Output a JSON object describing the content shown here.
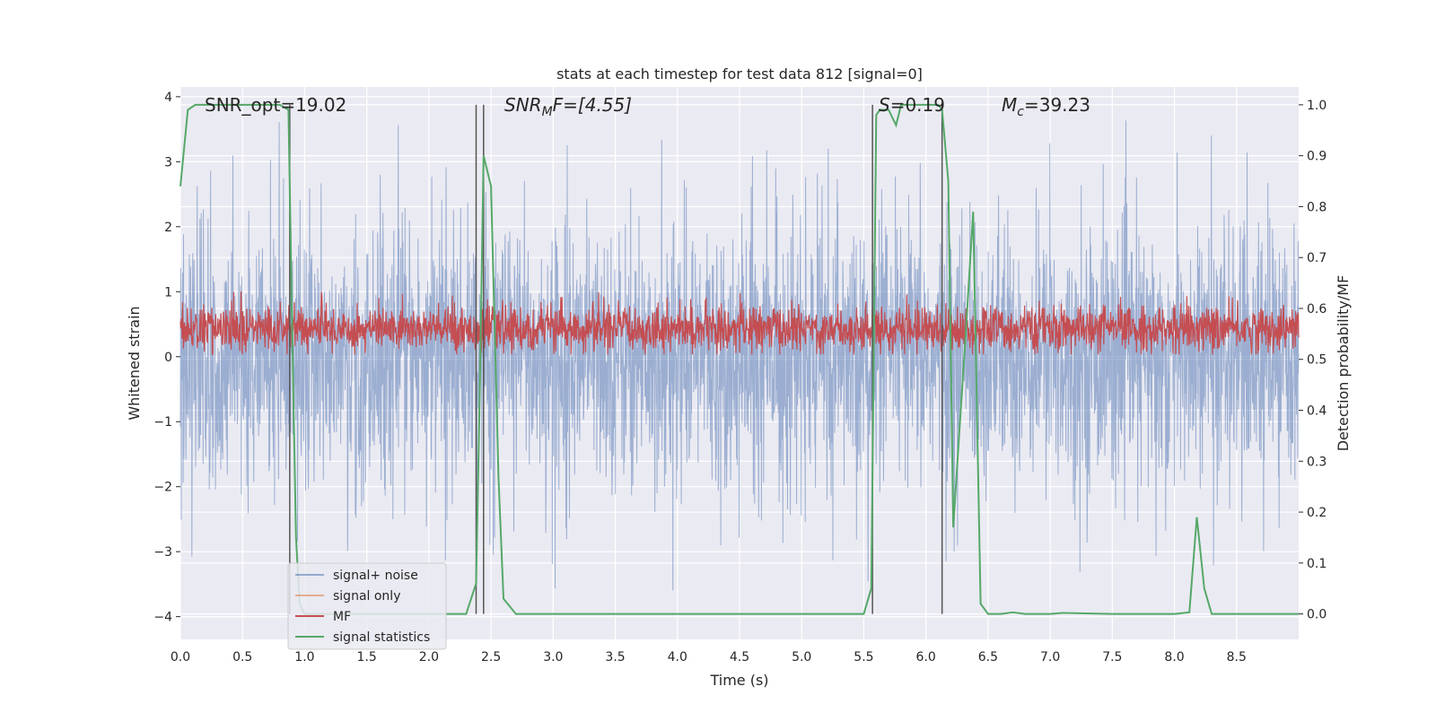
{
  "chart_data": {
    "type": "line",
    "title": "stats at each timestep for test data 812 [signal=0]",
    "xlabel": "Time (s)",
    "ylabel_left": "Whitened strain",
    "ylabel_right": "Detection probability/MF",
    "xlim": [
      0.0,
      9.0
    ],
    "ylim_left": [
      -4.35,
      4.15
    ],
    "ylim_right": [
      -0.05,
      1.035
    ],
    "x_ticks": [
      0.0,
      0.5,
      1.0,
      1.5,
      2.0,
      2.5,
      3.0,
      3.5,
      4.0,
      4.5,
      5.0,
      5.5,
      6.0,
      6.5,
      7.0,
      7.5,
      8.0,
      8.5
    ],
    "x_tick_labels": [
      "0.0",
      "0.5",
      "1.0",
      "1.5",
      "2.0",
      "2.5",
      "3.0",
      "3.5",
      "4.0",
      "4.5",
      "5.0",
      "5.5",
      "6.0",
      "6.5",
      "7.0",
      "7.5",
      "8.0",
      "8.5"
    ],
    "y_ticks_left": [
      -4,
      -3,
      -2,
      -1,
      0,
      1,
      2,
      3,
      4
    ],
    "y_tick_labels_left": [
      "−4",
      "−3",
      "−2",
      "−1",
      "0",
      "1",
      "2",
      "3",
      "4"
    ],
    "y_ticks_right": [
      0.0,
      0.1,
      0.2,
      0.3,
      0.4,
      0.5,
      0.6,
      0.7,
      0.8,
      0.9,
      1.0
    ],
    "y_tick_labels_right": [
      "0.0",
      "0.1",
      "0.2",
      "0.3",
      "0.4",
      "0.5",
      "0.6",
      "0.7",
      "0.8",
      "0.9",
      "1.0"
    ],
    "grid": true,
    "legend_position": "lower-left",
    "annotations": {
      "snr_opt": "SNR_opt=19.02",
      "snr_mf_symbol": "SNR",
      "snr_mf_subscript": "M",
      "snr_mf_rest": "F=[4.55]",
      "s_symbol": "S",
      "s_rest": "=0.19",
      "mc_symbol": "M",
      "mc_subscript": "c",
      "mc_rest": "=39.23"
    },
    "vertical_lines": [
      0.88,
      2.38,
      2.44,
      5.57,
      6.13
    ],
    "series": [
      {
        "name": "signal+ noise",
        "color": "#4c72b0",
        "axis": "left",
        "description_style": "dense noise",
        "noise_std": 0.95,
        "spike_max": 3.8
      },
      {
        "name": "signal only",
        "color": "#dd8452",
        "axis": "left",
        "values": []
      },
      {
        "name": "MF",
        "color": "#c44e52",
        "axis": "right",
        "band": [
          0.52,
          0.6
        ],
        "spike_max": 0.64
      },
      {
        "name": "signal statistics",
        "color": "#55a868",
        "axis": "right",
        "x": [
          0.0,
          0.06,
          0.12,
          0.2,
          0.3,
          0.4,
          0.5,
          0.6,
          0.7,
          0.8,
          0.87,
          0.9,
          0.93,
          0.96,
          1.0,
          1.1,
          1.5,
          2.0,
          2.3,
          2.38,
          2.41,
          2.44,
          2.5,
          2.56,
          2.6,
          2.7,
          3.0,
          4.0,
          5.0,
          5.5,
          5.56,
          5.6,
          5.63,
          5.7,
          5.76,
          5.8,
          5.9,
          6.0,
          6.1,
          6.13,
          6.18,
          6.22,
          6.27,
          6.32,
          6.38,
          6.44,
          6.5,
          6.6,
          6.7,
          6.8,
          7.0,
          7.1,
          7.5,
          8.0,
          8.12,
          8.18,
          8.24,
          8.3,
          8.5,
          9.0
        ],
        "values": [
          0.84,
          0.99,
          1.0,
          1.0,
          1.0,
          1.0,
          1.0,
          1.0,
          1.0,
          1.0,
          0.99,
          0.55,
          0.15,
          0.02,
          0.0,
          0.0,
          0.0,
          0.0,
          0.0,
          0.06,
          0.45,
          0.9,
          0.84,
          0.27,
          0.03,
          0.0,
          0.0,
          0.0,
          0.0,
          0.0,
          0.05,
          0.98,
          0.99,
          0.99,
          0.96,
          1.0,
          1.0,
          1.0,
          1.0,
          0.99,
          0.85,
          0.17,
          0.36,
          0.55,
          0.79,
          0.02,
          0.0,
          0.0,
          0.003,
          0.0,
          0.0,
          0.002,
          0.0,
          0.0,
          0.003,
          0.19,
          0.05,
          0.0,
          0.0,
          0.0
        ]
      }
    ]
  }
}
